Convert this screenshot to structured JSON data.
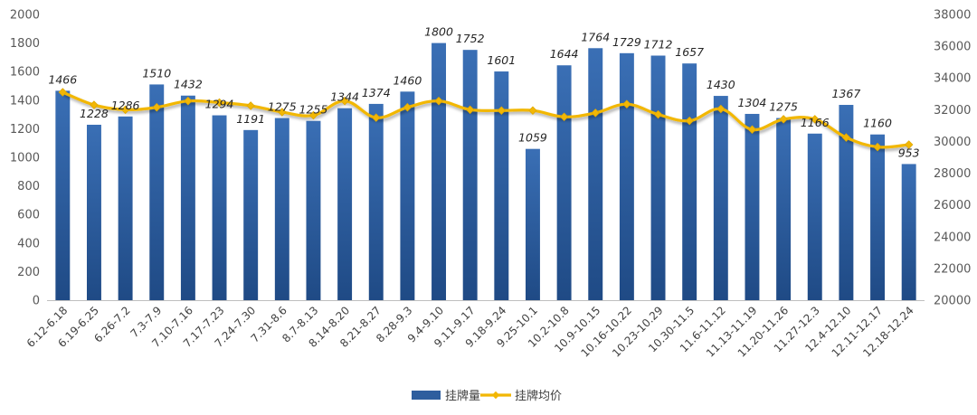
{
  "chart_data": {
    "type": "bar",
    "categories": [
      "6.12-6.18",
      "6.19-6.25",
      "6.26-7.2",
      "7.3-7.9",
      "7.10-7.16",
      "7.17-7.23",
      "7.24-7.30",
      "7.31-8.6",
      "8.7-8.13",
      "8.14-8.20",
      "8.21-8.27",
      "8.28-9.3",
      "9.4-9.10",
      "9.11-9.17",
      "9.18-9.24",
      "9.25-10.1",
      "10.2-10.8",
      "10.9-10.15",
      "10.16-10.22",
      "10.23-10.29",
      "10.30-11.5",
      "11.6-11.12",
      "11.13-11.19",
      "11.20-11.26",
      "11.27-12.3",
      "12.4-12.10",
      "12.11-12.17",
      "12.18-12.24"
    ],
    "series": [
      {
        "name": "挂牌量",
        "type": "bar",
        "axis": "left",
        "color": "#2E5E9E",
        "values": [
          1466,
          1228,
          1286,
          1510,
          1432,
          1294,
          1191,
          1275,
          1255,
          1344,
          1374,
          1460,
          1800,
          1752,
          1601,
          1059,
          1644,
          1764,
          1729,
          1712,
          1657,
          1430,
          1304,
          1275,
          1166,
          1367,
          1160,
          953
        ]
      },
      {
        "name": "挂牌均价",
        "type": "line",
        "axis": "right",
        "color": "#F2B705",
        "values": [
          33100,
          32300,
          32000,
          32150,
          32550,
          32450,
          32250,
          31850,
          31650,
          32550,
          31500,
          32150,
          32550,
          32000,
          31950,
          31950,
          31550,
          31800,
          32350,
          31700,
          31300,
          32050,
          30750,
          31400,
          31400,
          30250,
          29650,
          29800
        ]
      }
    ],
    "y_left": {
      "min": 0,
      "max": 2000,
      "ticks": [
        "0",
        "200",
        "400",
        "600",
        "800",
        "1000",
        "1200",
        "1400",
        "1600",
        "1800",
        "2000"
      ]
    },
    "y_right": {
      "min": 20000,
      "max": 38000,
      "ticks": [
        "20000",
        "22000",
        "24000",
        "26000",
        "28000",
        "30000",
        "32000",
        "34000",
        "36000",
        "38000"
      ]
    },
    "legend": [
      "挂牌量",
      "挂牌均价"
    ],
    "legend_position": "bottom",
    "title": "",
    "xlabel": "",
    "ylabel": ""
  }
}
